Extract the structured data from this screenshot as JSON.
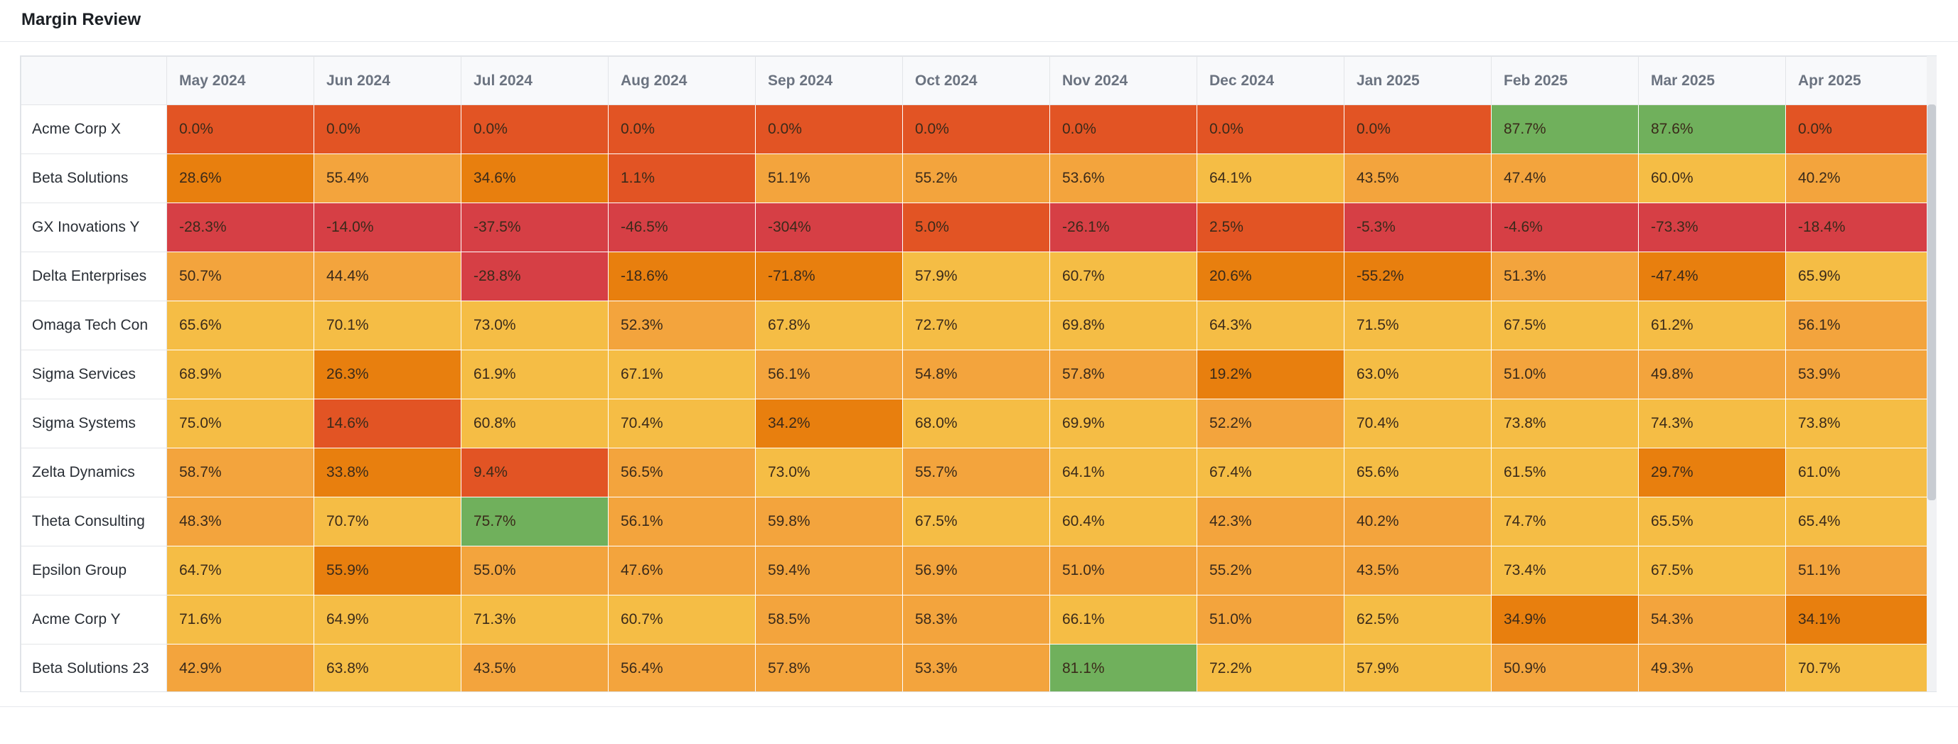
{
  "header": {
    "title": "Margin Review"
  },
  "table": {
    "months": [
      "May 2024",
      "Jun 2024",
      "Jul 2024",
      "Aug 2024",
      "Sep 2024",
      "Oct 2024",
      "Nov 2024",
      "Dec 2024",
      "Jan 2025",
      "Feb 2025",
      "Mar 2025",
      "Apr 2025"
    ],
    "colors": {
      "green": "#70b05c",
      "yellow": "#f5bd45",
      "light_orange": "#f3a43d",
      "orange": "#e87f0e",
      "red_orange": "#e25424",
      "red": "#d63f45"
    },
    "rows": [
      {
        "name": "Acme Corp X",
        "values": [
          "0.0%",
          "0.0%",
          "0.0%",
          "0.0%",
          "0.0%",
          "0.0%",
          "0.0%",
          "0.0%",
          "0.0%",
          "87.7%",
          "87.6%",
          "0.0%"
        ],
        "colors": [
          "red_orange",
          "red_orange",
          "red_orange",
          "red_orange",
          "red_orange",
          "red_orange",
          "red_orange",
          "red_orange",
          "red_orange",
          "green",
          "green",
          "red_orange"
        ]
      },
      {
        "name": "Beta Solutions",
        "values": [
          "28.6%",
          "55.4%",
          "34.6%",
          "1.1%",
          "51.1%",
          "55.2%",
          "53.6%",
          "64.1%",
          "43.5%",
          "47.4%",
          "60.0%",
          "40.2%"
        ],
        "colors": [
          "orange",
          "light_orange",
          "orange",
          "red_orange",
          "light_orange",
          "light_orange",
          "light_orange",
          "yellow",
          "light_orange",
          "light_orange",
          "yellow",
          "light_orange"
        ]
      },
      {
        "name": "GX Inovations Y",
        "values": [
          "-28.3%",
          "-14.0%",
          "-37.5%",
          "-46.5%",
          "-304%",
          "5.0%",
          "-26.1%",
          "2.5%",
          "-5.3%",
          "-4.6%",
          "-73.3%",
          "-18.4%"
        ],
        "colors": [
          "red",
          "red",
          "red",
          "red",
          "red",
          "red_orange",
          "red",
          "red_orange",
          "red",
          "red",
          "red",
          "red"
        ]
      },
      {
        "name": "Delta Enterprises",
        "values": [
          "50.7%",
          "44.4%",
          "-28.8%",
          "-18.6%",
          "-71.8%",
          "57.9%",
          "60.7%",
          "20.6%",
          "-55.2%",
          "51.3%",
          "-47.4%",
          "65.9%"
        ],
        "colors": [
          "light_orange",
          "light_orange",
          "red",
          "orange",
          "orange",
          "yellow",
          "yellow",
          "orange",
          "orange",
          "light_orange",
          "orange",
          "yellow"
        ]
      },
      {
        "name": "Omaga Tech Con",
        "values": [
          "65.6%",
          "70.1%",
          "73.0%",
          "52.3%",
          "67.8%",
          "72.7%",
          "69.8%",
          "64.3%",
          "71.5%",
          "67.5%",
          "61.2%",
          "56.1%"
        ],
        "colors": [
          "yellow",
          "yellow",
          "yellow",
          "light_orange",
          "yellow",
          "yellow",
          "yellow",
          "yellow",
          "yellow",
          "yellow",
          "yellow",
          "light_orange"
        ]
      },
      {
        "name": "Sigma Services",
        "values": [
          "68.9%",
          "26.3%",
          "61.9%",
          "67.1%",
          "56.1%",
          "54.8%",
          "57.8%",
          "19.2%",
          "63.0%",
          "51.0%",
          "49.8%",
          "53.9%"
        ],
        "colors": [
          "yellow",
          "orange",
          "yellow",
          "yellow",
          "light_orange",
          "light_orange",
          "light_orange",
          "orange",
          "yellow",
          "light_orange",
          "light_orange",
          "light_orange"
        ]
      },
      {
        "name": "Sigma Systems",
        "values": [
          "75.0%",
          "14.6%",
          "60.8%",
          "70.4%",
          "34.2%",
          "68.0%",
          "69.9%",
          "52.2%",
          "70.4%",
          "73.8%",
          "74.3%",
          "73.8%"
        ],
        "colors": [
          "yellow",
          "red_orange",
          "yellow",
          "yellow",
          "orange",
          "yellow",
          "yellow",
          "light_orange",
          "yellow",
          "yellow",
          "yellow",
          "yellow"
        ]
      },
      {
        "name": "Zelta Dynamics",
        "values": [
          "58.7%",
          "33.8%",
          "9.4%",
          "56.5%",
          "73.0%",
          "55.7%",
          "64.1%",
          "67.4%",
          "65.6%",
          "61.5%",
          "29.7%",
          "61.0%"
        ],
        "colors": [
          "light_orange",
          "orange",
          "red_orange",
          "light_orange",
          "yellow",
          "light_orange",
          "yellow",
          "yellow",
          "yellow",
          "yellow",
          "orange",
          "yellow"
        ]
      },
      {
        "name": "Theta Consulting",
        "values": [
          "48.3%",
          "70.7%",
          "75.7%",
          "56.1%",
          "59.8%",
          "67.5%",
          "60.4%",
          "42.3%",
          "40.2%",
          "74.7%",
          "65.5%",
          "65.4%"
        ],
        "colors": [
          "light_orange",
          "yellow",
          "green",
          "light_orange",
          "light_orange",
          "yellow",
          "yellow",
          "light_orange",
          "light_orange",
          "yellow",
          "yellow",
          "yellow"
        ]
      },
      {
        "name": "Epsilon Group",
        "values": [
          "64.7%",
          "55.9%",
          "55.0%",
          "47.6%",
          "59.4%",
          "56.9%",
          "51.0%",
          "55.2%",
          "43.5%",
          "73.4%",
          "67.5%",
          "51.1%"
        ],
        "colors": [
          "yellow",
          "orange",
          "light_orange",
          "light_orange",
          "light_orange",
          "light_orange",
          "light_orange",
          "light_orange",
          "light_orange",
          "yellow",
          "yellow",
          "light_orange"
        ]
      },
      {
        "name": "Acme Corp Y",
        "values": [
          "71.6%",
          "64.9%",
          "71.3%",
          "60.7%",
          "58.5%",
          "58.3%",
          "66.1%",
          "51.0%",
          "62.5%",
          "34.9%",
          "54.3%",
          "34.1%"
        ],
        "colors": [
          "yellow",
          "yellow",
          "yellow",
          "yellow",
          "light_orange",
          "light_orange",
          "yellow",
          "light_orange",
          "yellow",
          "orange",
          "light_orange",
          "orange"
        ]
      },
      {
        "name": "Beta Solutions 23",
        "values": [
          "42.9%",
          "63.8%",
          "43.5%",
          "56.4%",
          "57.8%",
          "53.3%",
          "81.1%",
          "72.2%",
          "57.9%",
          "50.9%",
          "49.3%",
          "70.7%"
        ],
        "colors": [
          "light_orange",
          "yellow",
          "light_orange",
          "light_orange",
          "light_orange",
          "light_orange",
          "green",
          "yellow",
          "yellow",
          "light_orange",
          "light_orange",
          "yellow"
        ]
      }
    ]
  }
}
